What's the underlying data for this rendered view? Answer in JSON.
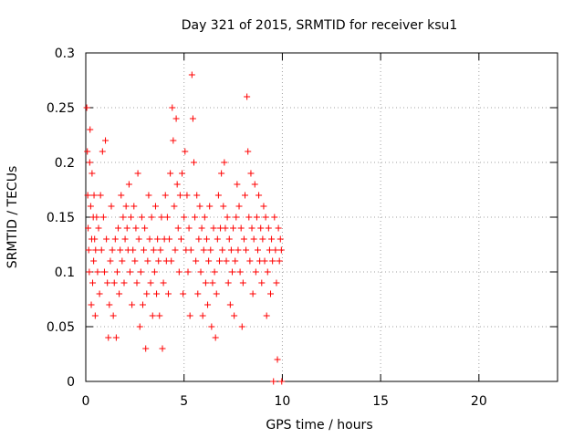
{
  "chart_data": {
    "type": "scatter",
    "title": "Day 321 of 2015, SRMTID for receiver ksu1",
    "xlabel": "GPS time / hours",
    "ylabel": "SRMTID / TECUs",
    "xlim": [
      0,
      24
    ],
    "ylim": [
      0,
      0.3
    ],
    "xticks": [
      0,
      5,
      10,
      15,
      20
    ],
    "yticks": [
      0,
      0.05,
      0.1,
      0.15,
      0.2,
      0.25,
      0.3
    ],
    "xtick_labels": [
      "0",
      "5",
      "10",
      "15",
      "20"
    ],
    "ytick_labels": [
      "0",
      "0.05",
      "0.1",
      "0.15",
      "0.2",
      "0.25",
      "0.3"
    ],
    "grid": true,
    "marker": "+",
    "series": [
      {
        "name": "ksu1",
        "color": "#ff0000",
        "points": [
          [
            0.05,
            0.25
          ],
          [
            0.08,
            0.21
          ],
          [
            0.1,
            0.17
          ],
          [
            0.12,
            0.14
          ],
          [
            0.15,
            0.12
          ],
          [
            0.18,
            0.1
          ],
          [
            0.2,
            0.2
          ],
          [
            0.22,
            0.23
          ],
          [
            0.25,
            0.16
          ],
          [
            0.28,
            0.07
          ],
          [
            0.3,
            0.13
          ],
          [
            0.32,
            0.19
          ],
          [
            0.35,
            0.09
          ],
          [
            0.38,
            0.15
          ],
          [
            0.4,
            0.11
          ],
          [
            0.42,
            0.17
          ],
          [
            0.45,
            0.13
          ],
          [
            0.48,
            0.06
          ],
          [
            0.5,
            0.12
          ],
          [
            0.55,
            0.15
          ],
          [
            0.6,
            0.1
          ],
          [
            0.65,
            0.14
          ],
          [
            0.7,
            0.08
          ],
          [
            0.75,
            0.17
          ],
          [
            0.8,
            0.12
          ],
          [
            0.85,
            0.21
          ],
          [
            0.9,
            0.15
          ],
          [
            0.95,
            0.1
          ],
          [
            1.0,
            0.22
          ],
          [
            1.05,
            0.13
          ],
          [
            1.1,
            0.09
          ],
          [
            1.15,
            0.04
          ],
          [
            1.2,
            0.07
          ],
          [
            1.25,
            0.11
          ],
          [
            1.3,
            0.16
          ],
          [
            1.35,
            0.12
          ],
          [
            1.4,
            0.06
          ],
          [
            1.45,
            0.09
          ],
          [
            1.5,
            0.13
          ],
          [
            1.55,
            0.04
          ],
          [
            1.6,
            0.1
          ],
          [
            1.65,
            0.14
          ],
          [
            1.7,
            0.08
          ],
          [
            1.75,
            0.12
          ],
          [
            1.8,
            0.17
          ],
          [
            1.85,
            0.11
          ],
          [
            1.9,
            0.15
          ],
          [
            1.95,
            0.09
          ],
          [
            2.0,
            0.13
          ],
          [
            2.05,
            0.16
          ],
          [
            2.1,
            0.14
          ],
          [
            2.15,
            0.12
          ],
          [
            2.2,
            0.18
          ],
          [
            2.25,
            0.1
          ],
          [
            2.3,
            0.15
          ],
          [
            2.35,
            0.07
          ],
          [
            2.4,
            0.12
          ],
          [
            2.45,
            0.16
          ],
          [
            2.5,
            0.11
          ],
          [
            2.55,
            0.14
          ],
          [
            2.6,
            0.09
          ],
          [
            2.65,
            0.19
          ],
          [
            2.7,
            0.13
          ],
          [
            2.75,
            0.05
          ],
          [
            2.8,
            0.1
          ],
          [
            2.85,
            0.15
          ],
          [
            2.9,
            0.07
          ],
          [
            2.95,
            0.12
          ],
          [
            3.0,
            0.14
          ],
          [
            3.05,
            0.03
          ],
          [
            3.1,
            0.08
          ],
          [
            3.15,
            0.11
          ],
          [
            3.2,
            0.17
          ],
          [
            3.25,
            0.13
          ],
          [
            3.3,
            0.09
          ],
          [
            3.35,
            0.15
          ],
          [
            3.4,
            0.06
          ],
          [
            3.45,
            0.12
          ],
          [
            3.5,
            0.1
          ],
          [
            3.55,
            0.16
          ],
          [
            3.6,
            0.08
          ],
          [
            3.65,
            0.13
          ],
          [
            3.7,
            0.11
          ],
          [
            3.75,
            0.06
          ],
          [
            3.8,
            0.12
          ],
          [
            3.85,
            0.15
          ],
          [
            3.9,
            0.03
          ],
          [
            3.95,
            0.09
          ],
          [
            4.0,
            0.13
          ],
          [
            4.05,
            0.17
          ],
          [
            4.1,
            0.11
          ],
          [
            4.15,
            0.15
          ],
          [
            4.2,
            0.08
          ],
          [
            4.25,
            0.13
          ],
          [
            4.3,
            0.19
          ],
          [
            4.35,
            0.11
          ],
          [
            4.4,
            0.25
          ],
          [
            4.45,
            0.22
          ],
          [
            4.5,
            0.16
          ],
          [
            4.55,
            0.12
          ],
          [
            4.6,
            0.24
          ],
          [
            4.65,
            0.18
          ],
          [
            4.7,
            0.14
          ],
          [
            4.75,
            0.1
          ],
          [
            4.8,
            0.17
          ],
          [
            4.85,
            0.13
          ],
          [
            4.9,
            0.19
          ],
          [
            4.95,
            0.08
          ],
          [
            5.0,
            0.15
          ],
          [
            5.05,
            0.21
          ],
          [
            5.1,
            0.12
          ],
          [
            5.15,
            0.17
          ],
          [
            5.2,
            0.1
          ],
          [
            5.25,
            0.14
          ],
          [
            5.3,
            0.06
          ],
          [
            5.35,
            0.12
          ],
          [
            5.4,
            0.28
          ],
          [
            5.45,
            0.24
          ],
          [
            5.5,
            0.2
          ],
          [
            5.55,
            0.15
          ],
          [
            5.6,
            0.11
          ],
          [
            5.65,
            0.17
          ],
          [
            5.7,
            0.08
          ],
          [
            5.75,
            0.13
          ],
          [
            5.8,
            0.16
          ],
          [
            5.85,
            0.1
          ],
          [
            5.9,
            0.14
          ],
          [
            5.95,
            0.06
          ],
          [
            6.0,
            0.12
          ],
          [
            6.05,
            0.15
          ],
          [
            6.1,
            0.09
          ],
          [
            6.15,
            0.13
          ],
          [
            6.2,
            0.07
          ],
          [
            6.25,
            0.11
          ],
          [
            6.3,
            0.16
          ],
          [
            6.35,
            0.12
          ],
          [
            6.4,
            0.05
          ],
          [
            6.45,
            0.09
          ],
          [
            6.5,
            0.14
          ],
          [
            6.55,
            0.1
          ],
          [
            6.6,
            0.04
          ],
          [
            6.65,
            0.08
          ],
          [
            6.7,
            0.13
          ],
          [
            6.75,
            0.17
          ],
          [
            6.8,
            0.11
          ],
          [
            6.85,
            0.14
          ],
          [
            6.9,
            0.19
          ],
          [
            6.95,
            0.12
          ],
          [
            7.0,
            0.16
          ],
          [
            7.05,
            0.2
          ],
          [
            7.1,
            0.14
          ],
          [
            7.15,
            0.11
          ],
          [
            7.2,
            0.15
          ],
          [
            7.25,
            0.09
          ],
          [
            7.3,
            0.13
          ],
          [
            7.35,
            0.07
          ],
          [
            7.4,
            0.12
          ],
          [
            7.45,
            0.1
          ],
          [
            7.5,
            0.14
          ],
          [
            7.55,
            0.06
          ],
          [
            7.6,
            0.11
          ],
          [
            7.65,
            0.15
          ],
          [
            7.7,
            0.18
          ],
          [
            7.75,
            0.12
          ],
          [
            7.8,
            0.16
          ],
          [
            7.85,
            0.1
          ],
          [
            7.9,
            0.14
          ],
          [
            7.95,
            0.05
          ],
          [
            8.0,
            0.09
          ],
          [
            8.05,
            0.13
          ],
          [
            8.1,
            0.17
          ],
          [
            8.15,
            0.12
          ],
          [
            8.2,
            0.26
          ],
          [
            8.25,
            0.21
          ],
          [
            8.3,
            0.15
          ],
          [
            8.35,
            0.11
          ],
          [
            8.4,
            0.19
          ],
          [
            8.45,
            0.14
          ],
          [
            8.5,
            0.08
          ],
          [
            8.55,
            0.13
          ],
          [
            8.6,
            0.18
          ],
          [
            8.65,
            0.1
          ],
          [
            8.7,
            0.15
          ],
          [
            8.75,
            0.12
          ],
          [
            8.8,
            0.17
          ],
          [
            8.85,
            0.11
          ],
          [
            8.9,
            0.14
          ],
          [
            8.95,
            0.09
          ],
          [
            9.0,
            0.13
          ],
          [
            9.05,
            0.16
          ],
          [
            9.1,
            0.11
          ],
          [
            9.15,
            0.15
          ],
          [
            9.2,
            0.06
          ],
          [
            9.25,
            0.1
          ],
          [
            9.3,
            0.14
          ],
          [
            9.35,
            0.12
          ],
          [
            9.4,
            0.08
          ],
          [
            9.45,
            0.13
          ],
          [
            9.5,
            0.11
          ],
          [
            9.55,
            0.0
          ],
          [
            9.6,
            0.15
          ],
          [
            9.65,
            0.12
          ],
          [
            9.7,
            0.09
          ],
          [
            9.75,
            0.02
          ],
          [
            9.8,
            0.14
          ],
          [
            9.85,
            0.11
          ],
          [
            9.9,
            0.13
          ],
          [
            9.95,
            0.12
          ],
          [
            9.97,
            0.0
          ]
        ]
      }
    ]
  }
}
